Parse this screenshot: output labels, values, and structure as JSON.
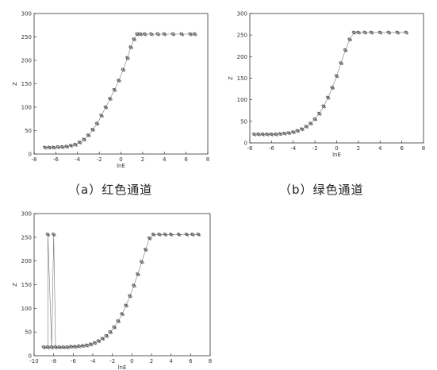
{
  "chart_data": [
    {
      "type": "scatter",
      "caption": "（a）红色通道",
      "title": "",
      "xlabel": "lnE",
      "ylabel": "Z",
      "xlim": [
        -8,
        8
      ],
      "ylim": [
        0,
        300
      ],
      "xticks": [
        -8,
        -6,
        -4,
        -2,
        0,
        2,
        4,
        6,
        8
      ],
      "yticks": [
        0,
        50,
        100,
        150,
        200,
        250,
        300
      ],
      "grid": false,
      "legend": "none",
      "series": [
        {
          "x": [
            -7.0,
            -6.6,
            -6.2,
            -5.8,
            -5.4,
            -5.0,
            -4.6,
            -4.2,
            -3.8,
            -3.4,
            -3.0,
            -2.6,
            -2.2,
            -1.8,
            -1.4,
            -1.0,
            -0.6,
            -0.2,
            0.2,
            0.6,
            0.9,
            1.2,
            1.5,
            1.8,
            2.2,
            2.8,
            3.4,
            4.0,
            4.8,
            5.6,
            6.4,
            6.8
          ],
          "y": [
            14,
            14,
            14,
            15,
            15,
            16,
            18,
            20,
            25,
            31,
            40,
            52,
            65,
            82,
            100,
            118,
            137,
            157,
            180,
            205,
            228,
            245,
            256,
            256,
            256,
            256,
            256,
            256,
            256,
            256,
            256,
            256
          ]
        }
      ]
    },
    {
      "type": "scatter",
      "caption": "（b）绿色通道",
      "title": "",
      "xlabel": "lnE",
      "ylabel": "Z",
      "xlim": [
        -8,
        8
      ],
      "ylim": [
        0,
        300
      ],
      "xticks": [
        -8,
        -6,
        -4,
        -2,
        0,
        2,
        4,
        6,
        8
      ],
      "yticks": [
        0,
        50,
        100,
        150,
        200,
        250,
        300
      ],
      "grid": false,
      "legend": "none",
      "series": [
        {
          "x": [
            -7.6,
            -7.2,
            -6.8,
            -6.4,
            -6.0,
            -5.6,
            -5.2,
            -4.8,
            -4.4,
            -4.0,
            -3.6,
            -3.2,
            -2.8,
            -2.4,
            -2.0,
            -1.6,
            -1.2,
            -0.8,
            -0.4,
            0.0,
            0.4,
            0.8,
            1.2,
            1.6,
            2.0,
            2.6,
            3.2,
            4.0,
            4.8,
            5.6,
            6.4
          ],
          "y": [
            20,
            20,
            20,
            20,
            20,
            20,
            21,
            22,
            23,
            25,
            28,
            32,
            38,
            45,
            55,
            68,
            85,
            105,
            128,
            155,
            185,
            215,
            240,
            256,
            256,
            256,
            256,
            256,
            256,
            256,
            256
          ]
        }
      ]
    },
    {
      "type": "scatter",
      "caption": "",
      "title": "",
      "xlabel": "lnE",
      "ylabel": "Z",
      "xlim": [
        -10,
        8
      ],
      "ylim": [
        0,
        300
      ],
      "xticks": [
        -10,
        -8,
        -6,
        -4,
        -2,
        0,
        2,
        4,
        6,
        8
      ],
      "yticks": [
        0,
        50,
        100,
        150,
        200,
        250,
        300
      ],
      "grid": false,
      "legend": "none",
      "series": [
        {
          "x": [
            -9.0,
            -8.6,
            -8.2,
            -7.8,
            -7.4,
            -7.0,
            -6.6,
            -6.2,
            -5.8,
            -5.4,
            -5.0,
            -4.6,
            -4.2,
            -3.8,
            -3.4,
            -3.0,
            -2.6,
            -2.2,
            -1.8,
            -1.4,
            -1.0,
            -0.6,
            -0.2,
            0.2,
            0.6,
            1.0,
            1.4,
            1.8,
            2.2,
            2.8,
            3.4,
            4.0,
            4.8,
            5.6,
            6.2,
            6.8,
            -8.6,
            -8.0
          ],
          "y": [
            18,
            18,
            18,
            18,
            18,
            18,
            18,
            19,
            19,
            20,
            21,
            22,
            24,
            27,
            31,
            36,
            42,
            50,
            60,
            73,
            88,
            106,
            126,
            148,
            172,
            198,
            224,
            248,
            256,
            256,
            256,
            256,
            256,
            256,
            256,
            256,
            256,
            256
          ]
        }
      ]
    }
  ]
}
